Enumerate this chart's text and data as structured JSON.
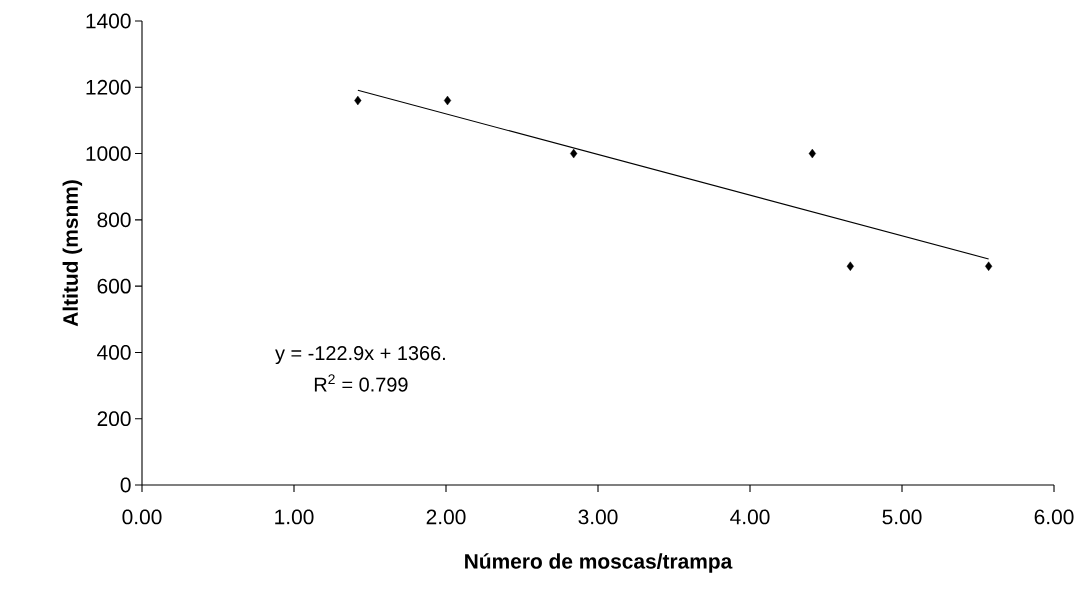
{
  "chart_data": {
    "type": "scatter",
    "xlabel": "Número de moscas/trampa",
    "ylabel": "Altitud (msnm)",
    "x": [
      1.42,
      2.01,
      2.84,
      4.41,
      4.66,
      5.57
    ],
    "series": [
      {
        "color": "#000000",
        "marker": "diamond",
        "values": [
          1160,
          1160,
          1000,
          1000,
          660,
          660
        ]
      },
      {
        "type": "line",
        "color": "#000000",
        "marker": "none",
        "x": [
          1.42,
          5.57
        ],
        "values": [
          1191,
          682
        ]
      }
    ],
    "annotations": [
      "y = -122.9x + 1366.",
      "R$^{2}$ = 0.799"
    ],
    "xlim": [
      0,
      6
    ],
    "ylim": [
      0,
      1400
    ],
    "xticks": [
      {
        "value": 0,
        "label": "0.00"
      },
      {
        "value": 1,
        "label": "1.00"
      },
      {
        "value": 2,
        "label": "2.00"
      },
      {
        "value": 3,
        "label": "3.00"
      },
      {
        "value": 4,
        "label": "4.00"
      },
      {
        "value": 5,
        "label": "5.00"
      },
      {
        "value": 6,
        "label": "6.00"
      }
    ],
    "yticks": [
      0,
      200,
      400,
      600,
      800,
      1000,
      1200,
      1400
    ],
    "grid": false
  }
}
